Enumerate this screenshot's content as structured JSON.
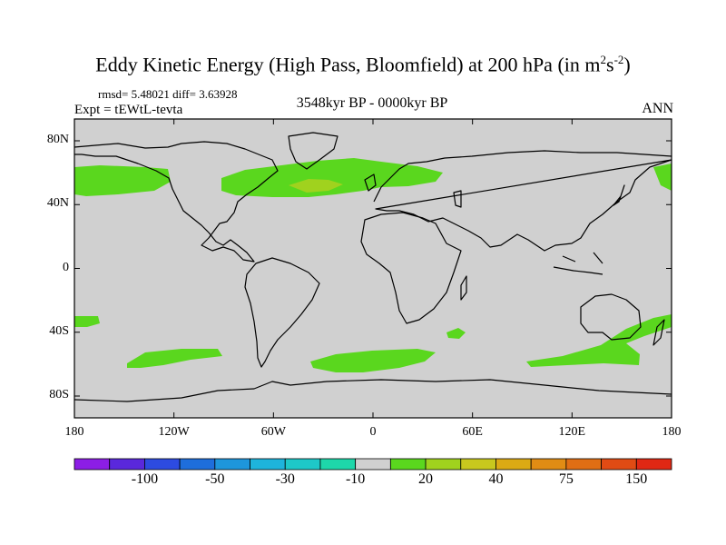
{
  "title": {
    "main": "Eddy Kinetic Energy (High Pass, Bloomfield) at 200 hPa (in m",
    "sup1": "2",
    "mid": "s",
    "sup2": "-2",
    "close": ")"
  },
  "stats": "rmsd= 5.48021 diff= 3.63928",
  "expt": "Expt = tEWtL-tevta",
  "period": "3548kyr BP - 0000kyr BP",
  "season": "ANN",
  "lat_labels": [
    "80N",
    "40N",
    "0",
    "40S",
    "80S"
  ],
  "lon_labels": [
    "180",
    "120W",
    "60W",
    "0",
    "60E",
    "120E",
    "180"
  ],
  "colorbar": {
    "colors": [
      "#8c1ee6",
      "#5a28dc",
      "#2d4be1",
      "#1e6edc",
      "#1e96dc",
      "#1eb4dc",
      "#1ec8c8",
      "#1ed7aa",
      "#d0d0d0",
      "#5ad71e",
      "#a0d21e",
      "#c8c81e",
      "#dcaa14",
      "#e18c14",
      "#e16e14",
      "#e14b14",
      "#e12814"
    ],
    "labels": [
      "-100",
      "-50",
      "-30",
      "-10",
      "20",
      "40",
      "75",
      "150"
    ]
  },
  "map_colors": {
    "background": "#d0d0d0",
    "green": "#5ad71e",
    "yellowgreen": "#a0d21e",
    "coast": "#000000"
  }
}
